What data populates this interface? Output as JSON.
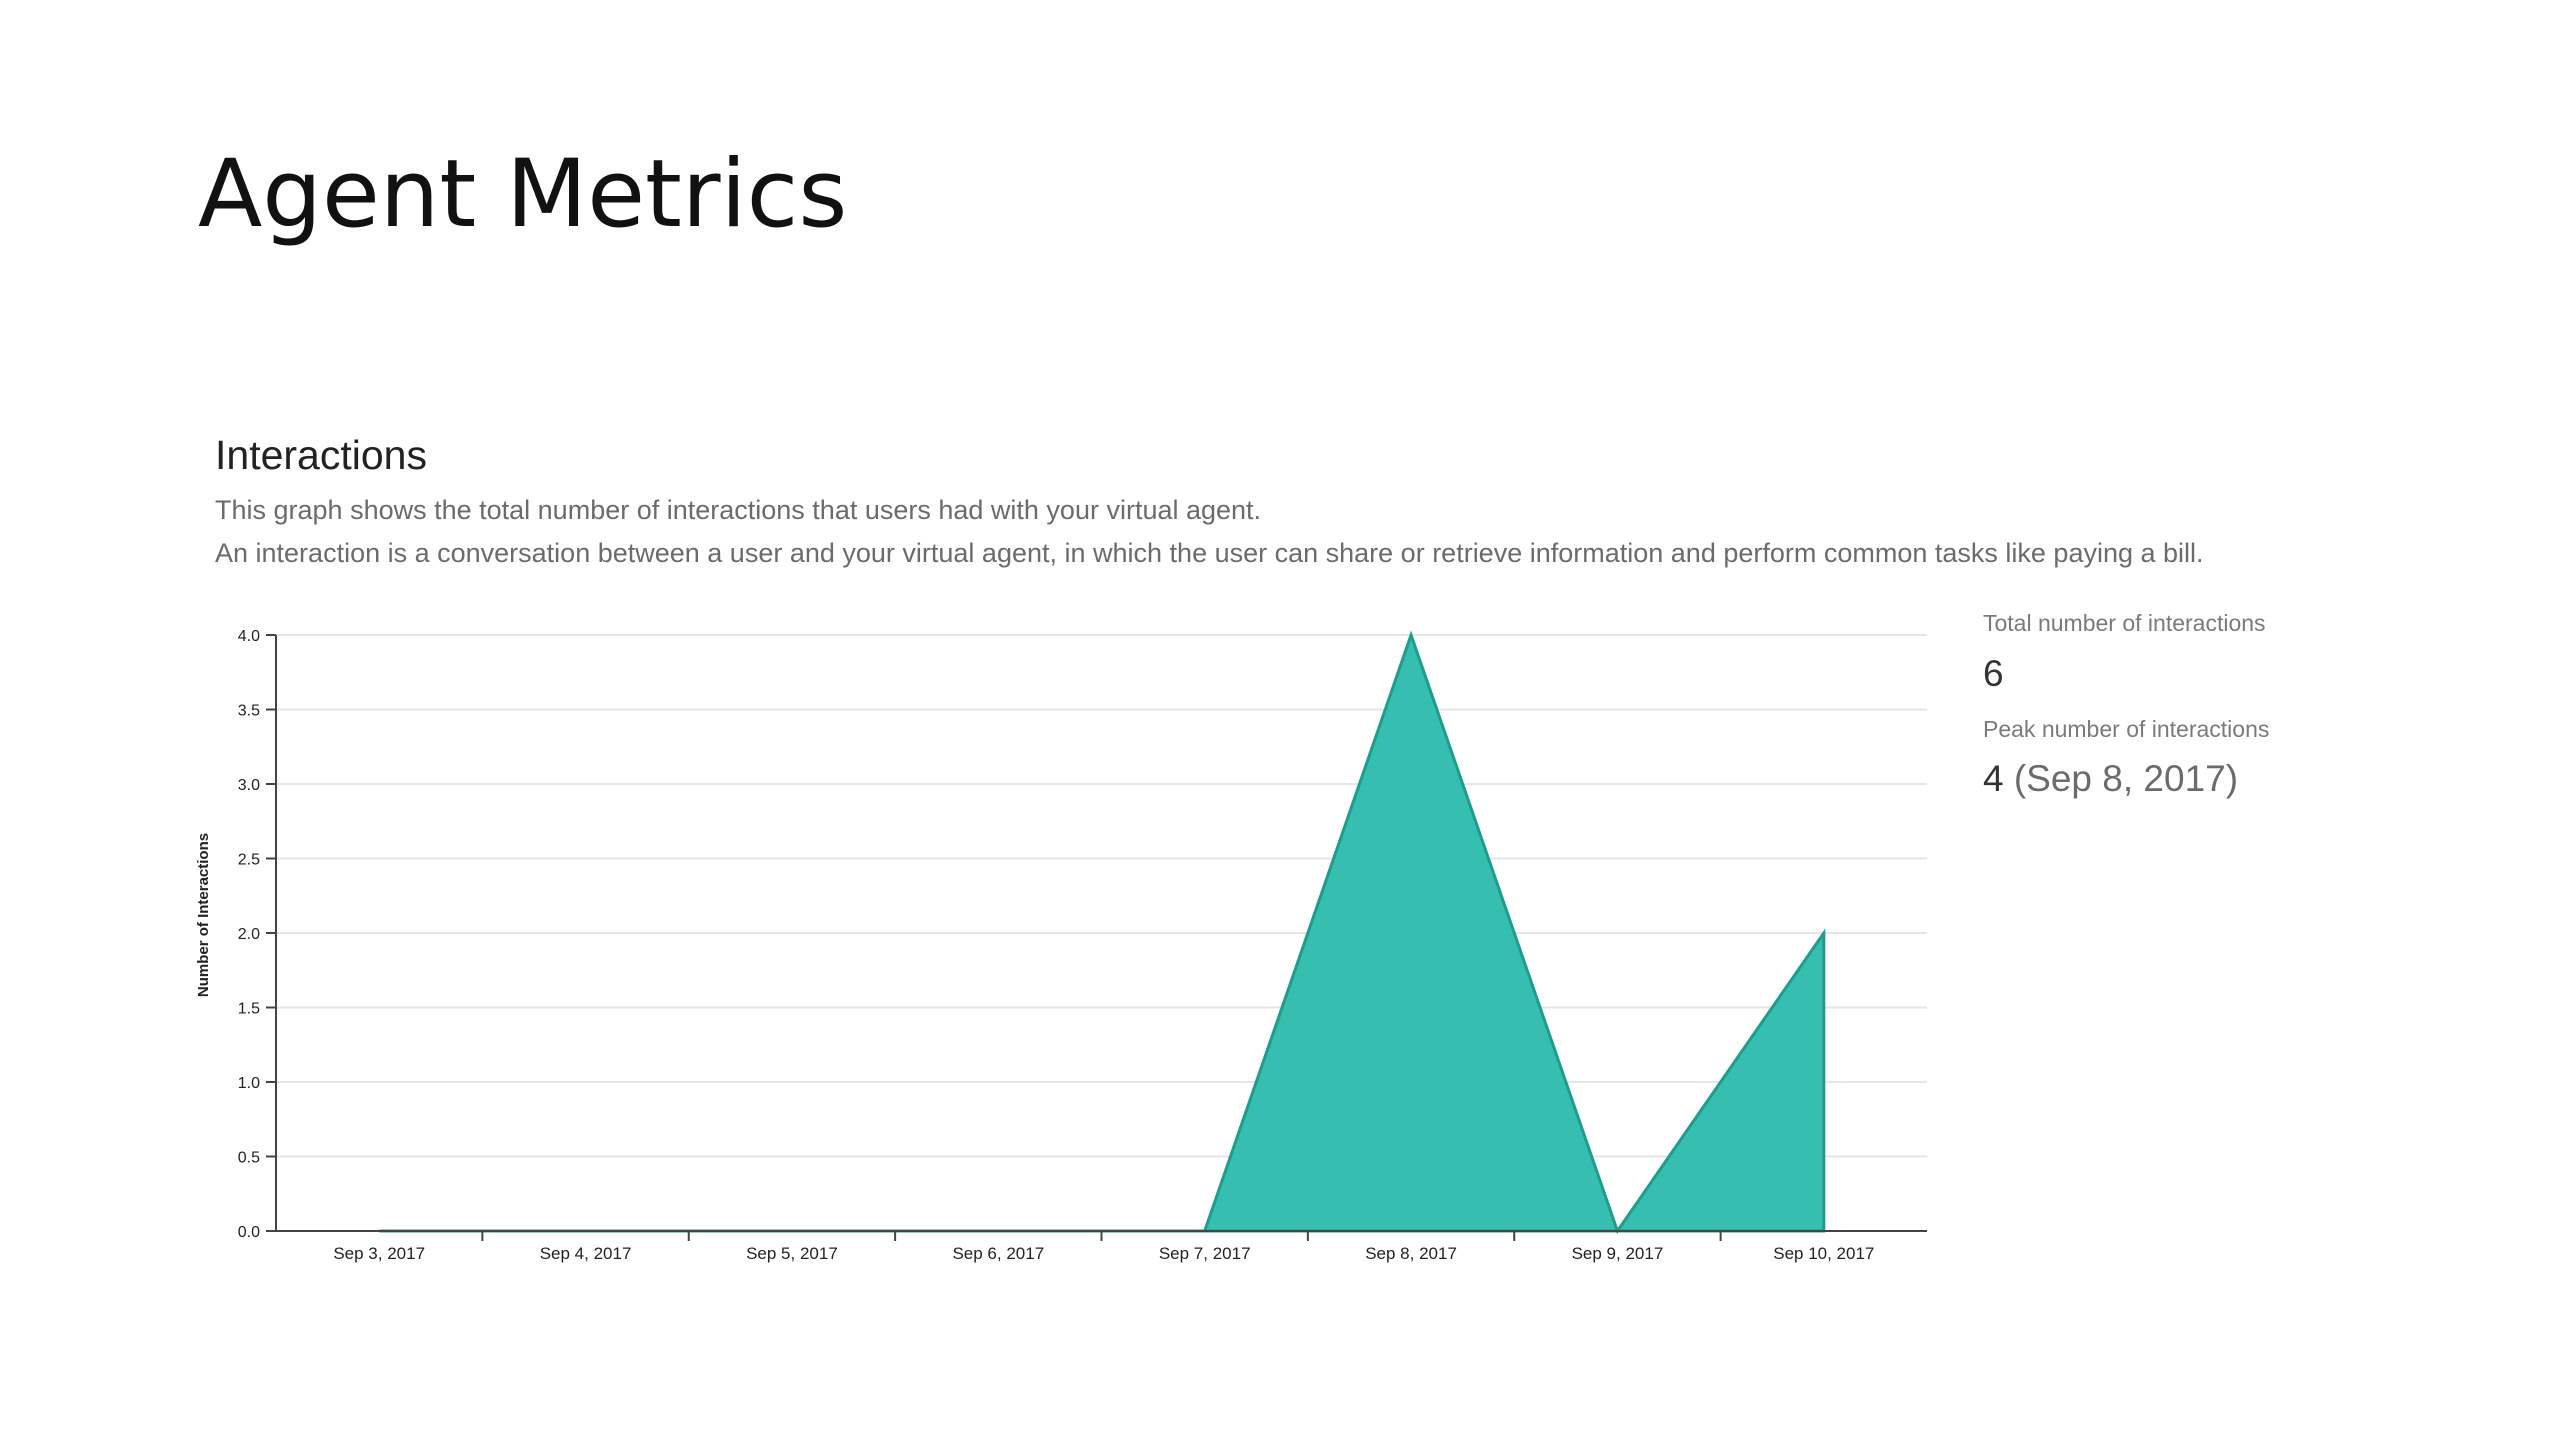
{
  "slide": {
    "title": "Agent Metrics"
  },
  "section": {
    "heading": "Interactions",
    "description_line1": "This graph shows the total number of interactions that users had with your virtual agent.",
    "description_line2": "An interaction is a conversation between a user and your virtual agent, in which the user can share or retrieve information and perform common tasks like paying a bill."
  },
  "stats": {
    "total_label": "Total number of interactions",
    "total_value": "6",
    "peak_label": "Peak number of interactions",
    "peak_value": "4",
    "peak_date": "(Sep 8, 2017)"
  },
  "colors": {
    "area_fill": "#36bfb0",
    "area_stroke": "#1f9c8c",
    "grid": "#e6e6e6",
    "axis": "#444444"
  },
  "chart_data": {
    "type": "area",
    "categories": [
      "Sep 3, 2017",
      "Sep 4, 2017",
      "Sep 5, 2017",
      "Sep 6, 2017",
      "Sep 7, 2017",
      "Sep 8, 2017",
      "Sep 9, 2017",
      "Sep 10, 2017"
    ],
    "values": [
      0,
      0,
      0,
      0,
      0,
      4,
      0,
      2
    ],
    "ylabel": "Number of Interactions",
    "ylim": [
      0,
      4
    ],
    "yticks": [
      "0.0",
      "0.5",
      "1.0",
      "1.5",
      "2.0",
      "2.5",
      "3.0",
      "3.5",
      "4.0"
    ],
    "ytick_values": [
      0,
      0.5,
      1,
      1.5,
      2,
      2.5,
      3,
      3.5,
      4
    ],
    "grid": true,
    "legend": "none"
  }
}
